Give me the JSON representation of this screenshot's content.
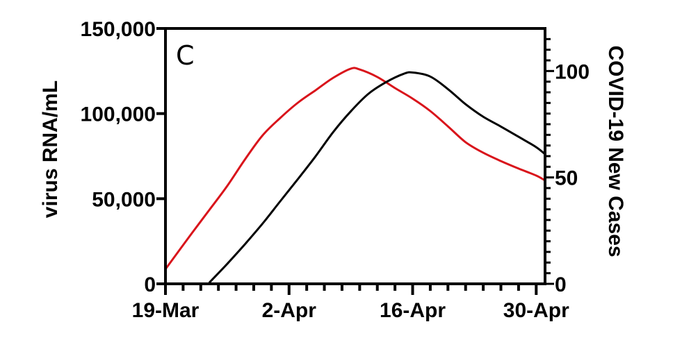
{
  "chart_data": {
    "type": "line",
    "title": "",
    "panel_label": "C",
    "xlabel": "",
    "ylabel": "virus RNA/mL",
    "y2label": "COVID-19 New Cases",
    "x_tick_labels": [
      "19-Mar",
      "2-Apr",
      "16-Apr",
      "30-Apr"
    ],
    "x_tick_day_offsets": [
      0,
      14,
      28,
      42
    ],
    "x_range_days": [
      0,
      43
    ],
    "x_minor_tick_step_days": 2,
    "ylim": [
      0,
      150000
    ],
    "y_ticks": [
      0,
      50000,
      100000,
      150000
    ],
    "y_tick_labels": [
      "0",
      "50,000",
      "100,000",
      "150,000"
    ],
    "y2lim": [
      0,
      120
    ],
    "y2_ticks": [
      0,
      50,
      100
    ],
    "y2_tick_labels": [
      "0",
      "50",
      "100"
    ],
    "y2_minor_tick_step": 5,
    "grid": false,
    "legend": null,
    "series": [
      {
        "name": "virus RNA/mL",
        "axis": "left",
        "color": "#d9141b",
        "x_day_offsets": [
          0,
          3,
          5,
          7,
          9,
          11,
          13,
          15,
          17,
          19,
          21,
          22,
          24,
          26,
          28,
          30,
          32,
          34,
          36,
          38,
          40,
          42,
          43
        ],
        "values": [
          8600,
          29800,
          43600,
          57500,
          73000,
          87200,
          97400,
          106400,
          113700,
          121000,
          126400,
          125900,
          121500,
          115000,
          108800,
          101500,
          92500,
          83200,
          77000,
          72100,
          67700,
          63600,
          60700
        ]
      },
      {
        "name": "COVID-19 New Cases",
        "axis": "right",
        "color": "#000000",
        "x_day_offsets": [
          5,
          7,
          9,
          11,
          13,
          15,
          17,
          19,
          21,
          23,
          25,
          27,
          28,
          30,
          32,
          34,
          36,
          38,
          40,
          42,
          43
        ],
        "values": [
          0.7,
          9.4,
          18.6,
          28.3,
          38.8,
          49.2,
          59.9,
          71.3,
          81.1,
          89.3,
          94.8,
          98.7,
          99.3,
          97.4,
          91.5,
          84.4,
          78.5,
          73.9,
          69.1,
          64.2,
          60.9
        ]
      }
    ]
  }
}
